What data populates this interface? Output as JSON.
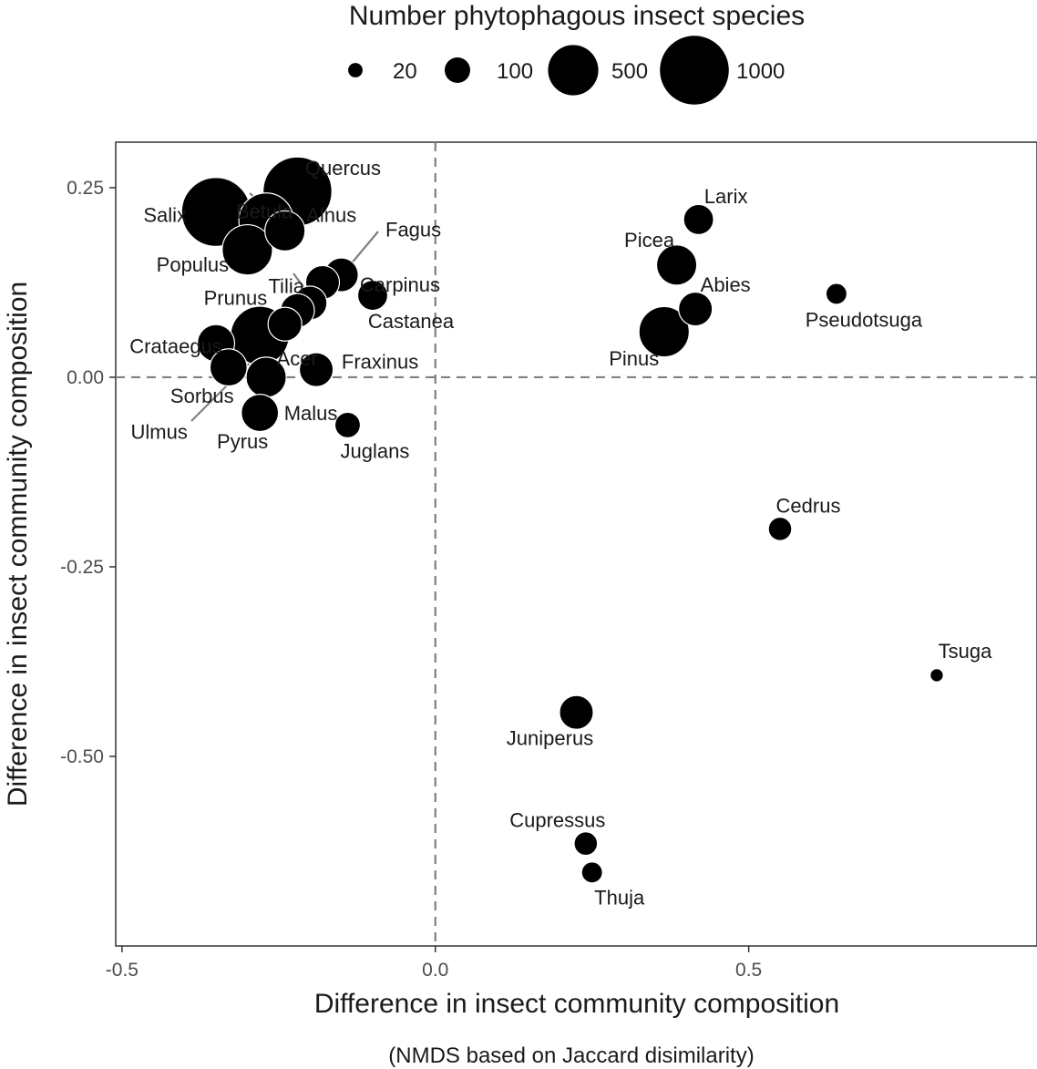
{
  "chart_data": {
    "type": "scatter",
    "title": "",
    "xlabel": "Difference in insect community composition",
    "xlabel_sub": "(NMDS based on Jaccard disimilarity)",
    "ylabel": "Difference in insect community composition",
    "xlim": [
      -0.51,
      0.96
    ],
    "ylim": [
      -0.75,
      0.31
    ],
    "x_ticks": [
      -0.5,
      0.0,
      0.5
    ],
    "x_tick_labels": [
      "-0.5",
      "0.0",
      "0.5"
    ],
    "y_ticks": [
      0.25,
      0.0,
      -0.25,
      -0.5
    ],
    "y_tick_labels": [
      "0.25",
      "0.00",
      "-0.25",
      "-0.50"
    ],
    "reference_lines": {
      "x": 0.0,
      "y": 0.0,
      "style": "dashed"
    },
    "grid": false,
    "size_legend": {
      "title": "Number phytophagous insect species",
      "placement": "top",
      "entries": [
        {
          "label": "20",
          "value": 20
        },
        {
          "label": "100",
          "value": 100
        },
        {
          "label": "500",
          "value": 500
        },
        {
          "label": "1000",
          "value": 1000
        }
      ]
    },
    "points": [
      {
        "label": "Quercus",
        "x": -0.22,
        "y": 0.245,
        "size": 1000
      },
      {
        "label": "Salix",
        "x": -0.35,
        "y": 0.218,
        "size": 1000
      },
      {
        "label": "Betula",
        "x": -0.27,
        "y": 0.207,
        "size": 600
      },
      {
        "label": "Alnus",
        "x": -0.24,
        "y": 0.193,
        "size": 300
      },
      {
        "label": "Populus",
        "x": -0.3,
        "y": 0.168,
        "size": 500
      },
      {
        "label": "Fagus",
        "x": -0.15,
        "y": 0.135,
        "size": 200
      },
      {
        "label": "Carpinus",
        "x": -0.18,
        "y": 0.125,
        "size": 200
      },
      {
        "label": "Castanea",
        "x": -0.1,
        "y": 0.108,
        "size": 150
      },
      {
        "label": "Tilia",
        "x": -0.2,
        "y": 0.098,
        "size": 200
      },
      {
        "label": "Prunus",
        "x": -0.22,
        "y": 0.088,
        "size": 200
      },
      {
        "label": "Ulmus",
        "x": -0.24,
        "y": 0.07,
        "size": 200
      },
      {
        "label": "Acer",
        "x": -0.28,
        "y": 0.055,
        "size": 700
      },
      {
        "label": "Crataegus",
        "x": -0.35,
        "y": 0.045,
        "size": 250
      },
      {
        "label": "Sorbus",
        "x": -0.33,
        "y": 0.013,
        "size": 250
      },
      {
        "label": "Fraxinus",
        "x": -0.19,
        "y": 0.01,
        "size": 200
      },
      {
        "label": "Malus",
        "x": -0.27,
        "y": 0.0,
        "size": 300
      },
      {
        "label": "Pyrus",
        "x": -0.28,
        "y": -0.047,
        "size": 250
      },
      {
        "label": "Juglans",
        "x": -0.14,
        "y": -0.063,
        "size": 100
      },
      {
        "label": "Larix",
        "x": 0.42,
        "y": 0.208,
        "size": 150
      },
      {
        "label": "Picea",
        "x": 0.385,
        "y": 0.148,
        "size": 300
      },
      {
        "label": "Pseudotsuga",
        "x": 0.64,
        "y": 0.11,
        "size": 60
      },
      {
        "label": "Abies",
        "x": 0.415,
        "y": 0.09,
        "size": 200
      },
      {
        "label": "Pinus",
        "x": 0.365,
        "y": 0.06,
        "size": 500
      },
      {
        "label": "Cedrus",
        "x": 0.55,
        "y": -0.2,
        "size": 80
      },
      {
        "label": "Tsuga",
        "x": 0.8,
        "y": -0.393,
        "size": 15
      },
      {
        "label": "Juniperus",
        "x": 0.225,
        "y": -0.442,
        "size": 200
      },
      {
        "label": "Cupressus",
        "x": 0.24,
        "y": -0.615,
        "size": 80
      },
      {
        "label": "Thuja",
        "x": 0.25,
        "y": -0.653,
        "size": 60
      }
    ]
  }
}
